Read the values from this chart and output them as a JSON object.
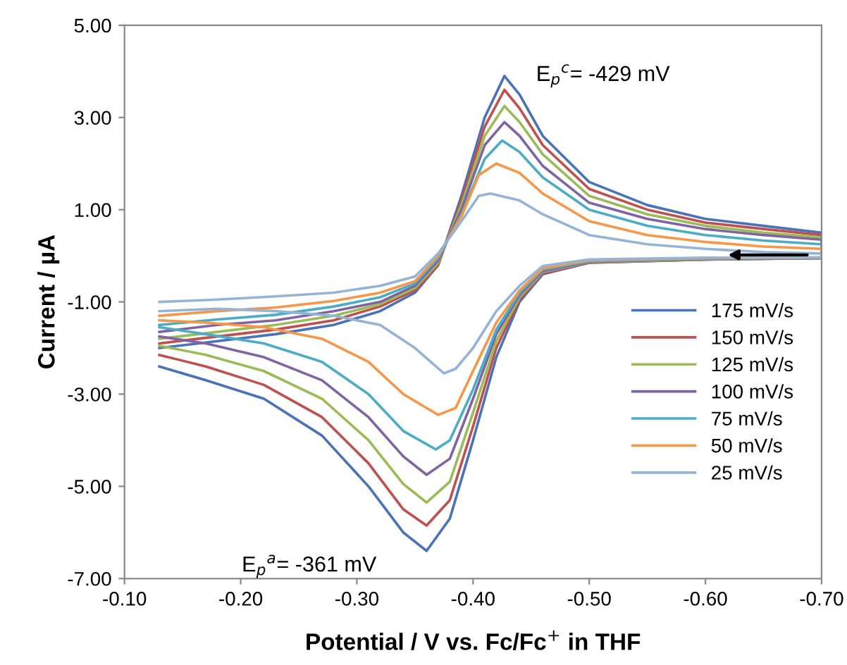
{
  "chart_data": {
    "type": "line",
    "xlabel": "Potential / V vs. Fc/Fc$^{+}$ in THF",
    "ylabel": "Current / µA",
    "xlim": [
      -0.1,
      -0.7
    ],
    "xticks": [
      {
        "value": -0.1,
        "label": "-0.10"
      },
      {
        "value": -0.2,
        "label": "-0.20"
      },
      {
        "value": -0.3,
        "label": "-0.30"
      },
      {
        "value": -0.4,
        "label": "-0.40"
      },
      {
        "value": -0.5,
        "label": "-0.50"
      },
      {
        "value": -0.6,
        "label": "-0.60"
      },
      {
        "value": -0.7,
        "label": "-0.70"
      }
    ],
    "ylim": [
      -7,
      5
    ],
    "yticks": [
      {
        "value": -7,
        "label": "-7.00"
      },
      {
        "value": -5,
        "label": "-5.00"
      },
      {
        "value": -3,
        "label": "-3.00"
      },
      {
        "value": -1,
        "label": "-1.00"
      },
      {
        "value": 1,
        "label": "1.00"
      },
      {
        "value": 3,
        "label": "3.00"
      },
      {
        "value": 5,
        "label": "5.00"
      }
    ],
    "grid": false,
    "legend": "bottom right",
    "marker": "none",
    "line_style": "solid",
    "annotations": [
      {
        "text": "E$_{p}$$^{c}$= -429 mV",
        "x": -0.429,
        "y": 3.9
      },
      {
        "text": "E$_{p}$$^{a}$= -361 mV",
        "x": -0.361,
        "y": -6.4
      }
    ],
    "series": [
      {
        "name": "175 mV/s",
        "color": "#4a72b8",
        "x": [
          -0.13,
          -0.18,
          -0.23,
          -0.28,
          -0.32,
          -0.35,
          -0.37,
          -0.39,
          -0.41,
          -0.427,
          -0.44,
          -0.46,
          -0.5,
          -0.55,
          -0.6,
          -0.65,
          -0.7,
          -0.7,
          -0.6,
          -0.5,
          -0.46,
          -0.44,
          -0.42,
          -0.4,
          -0.38,
          -0.36,
          -0.34,
          -0.31,
          -0.27,
          -0.22,
          -0.17,
          -0.13
        ],
        "values": [
          -2.0,
          -1.85,
          -1.7,
          -1.5,
          -1.2,
          -0.8,
          -0.2,
          1.3,
          3.0,
          3.9,
          3.5,
          2.6,
          1.6,
          1.1,
          0.8,
          0.65,
          0.5,
          -0.05,
          -0.08,
          -0.15,
          -0.4,
          -1.0,
          -2.2,
          -4.0,
          -5.7,
          -6.4,
          -6.0,
          -5.0,
          -3.9,
          -3.1,
          -2.7,
          -2.4
        ]
      },
      {
        "name": "150 mV/s",
        "color": "#c0504d",
        "x": [
          -0.13,
          -0.18,
          -0.23,
          -0.28,
          -0.32,
          -0.35,
          -0.37,
          -0.39,
          -0.41,
          -0.427,
          -0.44,
          -0.46,
          -0.5,
          -0.55,
          -0.6,
          -0.65,
          -0.7,
          -0.7,
          -0.6,
          -0.5,
          -0.46,
          -0.44,
          -0.42,
          -0.4,
          -0.38,
          -0.36,
          -0.34,
          -0.31,
          -0.27,
          -0.22,
          -0.17,
          -0.13
        ],
        "values": [
          -1.9,
          -1.75,
          -1.6,
          -1.4,
          -1.1,
          -0.75,
          -0.2,
          1.2,
          2.8,
          3.6,
          3.2,
          2.4,
          1.45,
          1.0,
          0.72,
          0.58,
          0.45,
          -0.05,
          -0.08,
          -0.15,
          -0.38,
          -0.95,
          -2.0,
          -3.7,
          -5.3,
          -5.85,
          -5.5,
          -4.5,
          -3.5,
          -2.8,
          -2.4,
          -2.15
        ]
      },
      {
        "name": "125 mV/s",
        "color": "#9bbb59",
        "x": [
          -0.13,
          -0.18,
          -0.23,
          -0.28,
          -0.32,
          -0.35,
          -0.37,
          -0.39,
          -0.41,
          -0.427,
          -0.44,
          -0.46,
          -0.5,
          -0.55,
          -0.6,
          -0.65,
          -0.7,
          -0.7,
          -0.6,
          -0.5,
          -0.46,
          -0.44,
          -0.42,
          -0.4,
          -0.38,
          -0.36,
          -0.34,
          -0.31,
          -0.27,
          -0.22,
          -0.17,
          -0.13
        ],
        "values": [
          -1.8,
          -1.65,
          -1.5,
          -1.3,
          -1.05,
          -0.7,
          -0.15,
          1.1,
          2.6,
          3.25,
          2.9,
          2.2,
          1.3,
          0.9,
          0.65,
          0.5,
          0.4,
          -0.05,
          -0.08,
          -0.14,
          -0.35,
          -0.9,
          -1.85,
          -3.4,
          -4.9,
          -5.35,
          -4.95,
          -4.0,
          -3.1,
          -2.5,
          -2.15,
          -1.95
        ]
      },
      {
        "name": "100 mV/s",
        "color": "#8064a2",
        "x": [
          -0.13,
          -0.18,
          -0.23,
          -0.28,
          -0.32,
          -0.35,
          -0.37,
          -0.39,
          -0.41,
          -0.427,
          -0.44,
          -0.46,
          -0.5,
          -0.55,
          -0.6,
          -0.65,
          -0.7,
          -0.7,
          -0.6,
          -0.5,
          -0.46,
          -0.44,
          -0.42,
          -0.4,
          -0.38,
          -0.36,
          -0.34,
          -0.31,
          -0.27,
          -0.22,
          -0.17,
          -0.13
        ],
        "values": [
          -1.65,
          -1.5,
          -1.4,
          -1.2,
          -1.0,
          -0.65,
          -0.1,
          1.0,
          2.4,
          2.9,
          2.6,
          1.95,
          1.15,
          0.8,
          0.58,
          0.45,
          0.35,
          -0.05,
          -0.07,
          -0.13,
          -0.33,
          -0.85,
          -1.7,
          -3.1,
          -4.4,
          -4.75,
          -4.35,
          -3.5,
          -2.7,
          -2.2,
          -1.9,
          -1.75
        ]
      },
      {
        "name": "75 mV/s",
        "color": "#4bacc6",
        "x": [
          -0.13,
          -0.18,
          -0.23,
          -0.28,
          -0.32,
          -0.35,
          -0.37,
          -0.39,
          -0.41,
          -0.425,
          -0.44,
          -0.46,
          -0.5,
          -0.55,
          -0.6,
          -0.65,
          -0.7,
          -0.7,
          -0.6,
          -0.5,
          -0.46,
          -0.44,
          -0.42,
          -0.4,
          -0.38,
          -0.368,
          -0.34,
          -0.31,
          -0.27,
          -0.22,
          -0.17,
          -0.13
        ],
        "values": [
          -1.5,
          -1.38,
          -1.28,
          -1.1,
          -0.9,
          -0.6,
          -0.05,
          0.9,
          2.1,
          2.5,
          2.25,
          1.7,
          1.0,
          0.65,
          0.45,
          0.33,
          0.25,
          -0.04,
          -0.06,
          -0.12,
          -0.3,
          -0.8,
          -1.6,
          -2.9,
          -4.0,
          -4.2,
          -3.8,
          -3.0,
          -2.3,
          -1.9,
          -1.7,
          -1.55
        ]
      },
      {
        "name": "50 mV/s",
        "color": "#f79646",
        "x": [
          -0.13,
          -0.18,
          -0.23,
          -0.28,
          -0.32,
          -0.35,
          -0.37,
          -0.39,
          -0.405,
          -0.42,
          -0.44,
          -0.46,
          -0.5,
          -0.55,
          -0.6,
          -0.65,
          -0.7,
          -0.7,
          -0.6,
          -0.5,
          -0.46,
          -0.44,
          -0.42,
          -0.4,
          -0.385,
          -0.37,
          -0.34,
          -0.31,
          -0.27,
          -0.22,
          -0.17,
          -0.13
        ],
        "values": [
          -1.3,
          -1.2,
          -1.12,
          -0.98,
          -0.8,
          -0.55,
          0.0,
          0.85,
          1.75,
          2.0,
          1.8,
          1.35,
          0.75,
          0.45,
          0.3,
          0.2,
          0.15,
          -0.04,
          -0.05,
          -0.1,
          -0.27,
          -0.75,
          -1.45,
          -2.5,
          -3.3,
          -3.45,
          -3.0,
          -2.3,
          -1.8,
          -1.55,
          -1.45,
          -1.4
        ]
      },
      {
        "name": "25 mV/s",
        "color": "#95b3d7",
        "x": [
          -0.13,
          -0.18,
          -0.23,
          -0.28,
          -0.32,
          -0.35,
          -0.37,
          -0.39,
          -0.405,
          -0.415,
          -0.44,
          -0.46,
          -0.5,
          -0.55,
          -0.6,
          -0.65,
          -0.7,
          -0.7,
          -0.6,
          -0.5,
          -0.46,
          -0.44,
          -0.42,
          -0.4,
          -0.385,
          -0.375,
          -0.35,
          -0.32,
          -0.28,
          -0.23,
          -0.18,
          -0.13
        ],
        "values": [
          -1.0,
          -0.95,
          -0.88,
          -0.8,
          -0.65,
          -0.45,
          0.05,
          0.75,
          1.3,
          1.35,
          1.2,
          0.9,
          0.45,
          0.25,
          0.15,
          0.08,
          0.05,
          -0.03,
          -0.04,
          -0.08,
          -0.22,
          -0.65,
          -1.2,
          -2.0,
          -2.45,
          -2.55,
          -2.0,
          -1.5,
          -1.3,
          -1.2,
          -1.15,
          -1.2
        ]
      }
    ]
  }
}
